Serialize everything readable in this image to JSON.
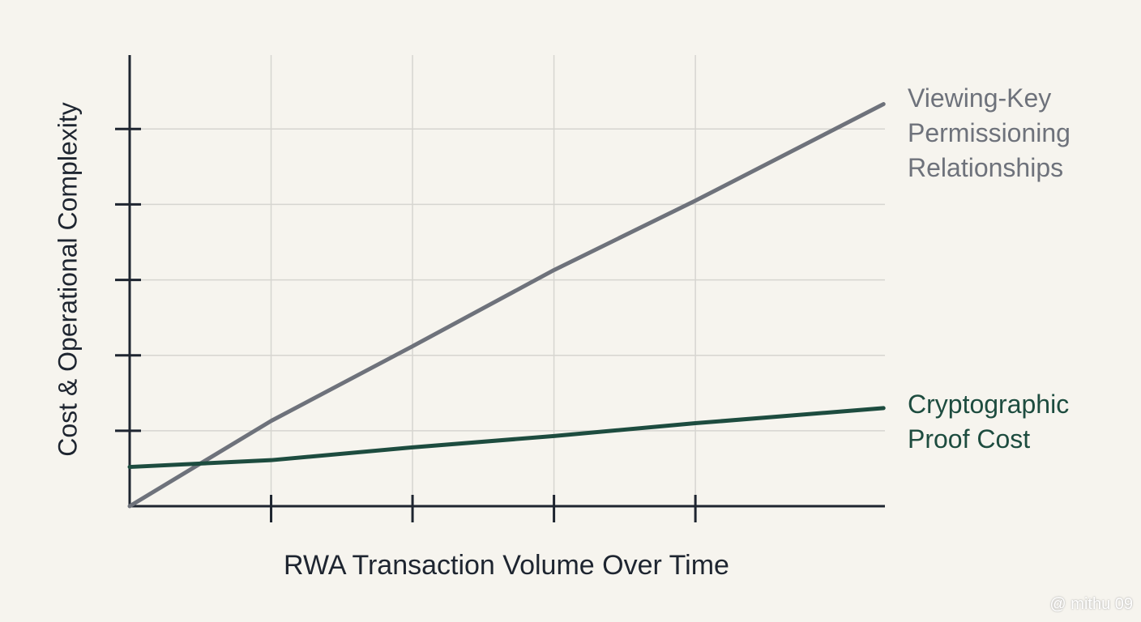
{
  "chart_data": {
    "type": "line",
    "x_label": "RWA Transaction Volume Over Time",
    "y_label": "Cost & Operational Complexity",
    "xlim": [
      0,
      5.34
    ],
    "ylim": [
      0,
      5.98
    ],
    "xticks": [
      1,
      2,
      3,
      4
    ],
    "yticks": [
      1,
      2,
      3,
      4,
      5
    ],
    "grid": true,
    "series": [
      {
        "name": "Viewing-Key Permissioning Relationships",
        "color": "#6e727b",
        "x": [
          0,
          1,
          2,
          3,
          4,
          5.33
        ],
        "values": [
          0,
          1.13,
          2.12,
          3.13,
          4.05,
          5.33
        ]
      },
      {
        "name": "Cryptographic Proof Cost",
        "color": "#1d4c3f",
        "x": [
          0,
          1,
          2,
          3,
          4,
          5.33
        ],
        "values": [
          0.52,
          0.61,
          0.78,
          0.93,
          1.1,
          1.3
        ]
      }
    ]
  },
  "watermark": "@ mithu 09"
}
